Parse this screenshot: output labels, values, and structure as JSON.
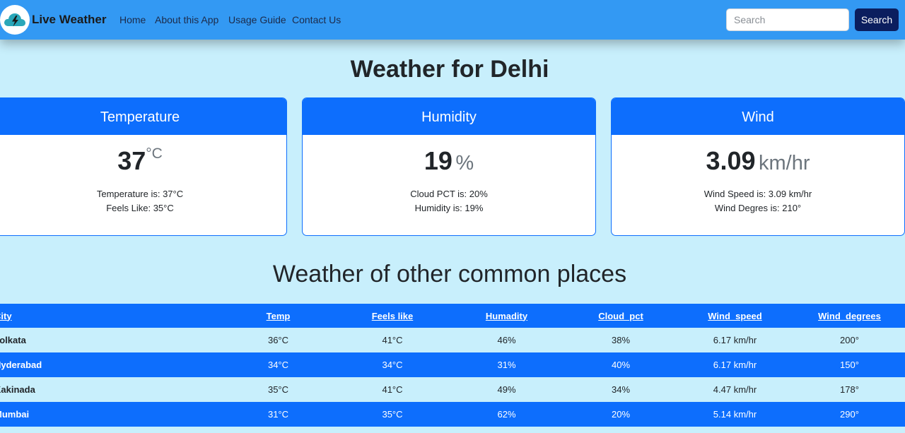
{
  "navbar": {
    "brand": "Live Weather",
    "links": [
      "Home",
      "About this App",
      "Usage Guide",
      "Contact Us"
    ],
    "search_placeholder": "Search",
    "search_button": "Search"
  },
  "title": "Weather for Delhi",
  "cards": [
    {
      "header": "Temperature",
      "value": "37",
      "unit": "°C",
      "lines": [
        "Temperature is: 37°C",
        "Feels Like: 35°C"
      ]
    },
    {
      "header": "Humidity",
      "value": "19",
      "unit": "%",
      "lines": [
        "Cloud PCT is: 20%",
        "Humidity is: 19%"
      ]
    },
    {
      "header": "Wind",
      "value": "3.09",
      "unit": "km/hr",
      "lines": [
        "Wind Speed is: 3.09 km/hr",
        "Wind Degres is: 210°"
      ]
    }
  ],
  "table": {
    "title": "Weather of other common places",
    "headers": [
      "City",
      "Temp",
      "Feels like",
      "Humadity",
      "Cloud_pct",
      "Wind_speed",
      "Wind_degrees"
    ],
    "rows": [
      [
        "kolkata",
        "36°C",
        "41°C",
        "46%",
        "38%",
        "6.17 km/hr",
        "200°"
      ],
      [
        "Hyderabad",
        "34°C",
        "34°C",
        "31%",
        "40%",
        "6.17 km/hr",
        "150°"
      ],
      [
        "Kakinada",
        "35°C",
        "41°C",
        "49%",
        "34%",
        "4.47 km/hr",
        "178°"
      ],
      [
        "Mumbai",
        "31°C",
        "35°C",
        "62%",
        "20%",
        "5.14 km/hr",
        "290°"
      ]
    ]
  },
  "colors": {
    "navbar": "#3399f3",
    "page_background": "#c8effc",
    "primary": "#0d6efd",
    "search_button": "#0b1e5e"
  }
}
